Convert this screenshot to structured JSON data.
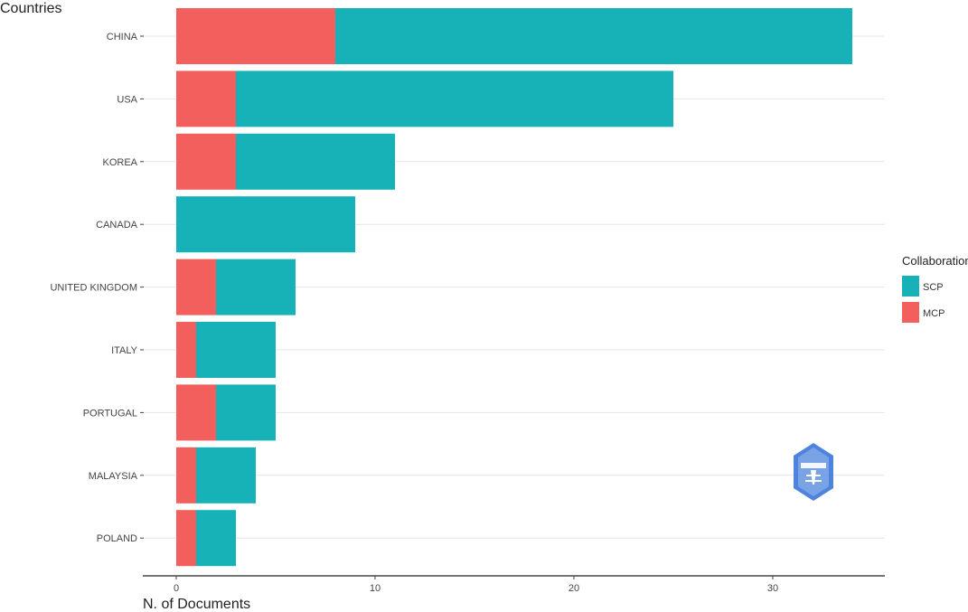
{
  "chart_data": {
    "type": "bar",
    "orientation": "horizontal",
    "stacked": true,
    "categories": [
      "CHINA",
      "USA",
      "KOREA",
      "CANADA",
      "UNITED KINGDOM",
      "ITALY",
      "PORTUGAL",
      "MALAYSIA",
      "POLAND"
    ],
    "series": [
      {
        "name": "MCP",
        "color": "#F25F5C",
        "values": [
          8,
          3,
          3,
          0,
          2,
          1,
          2,
          1,
          1
        ]
      },
      {
        "name": "SCP",
        "color": "#17B2B8",
        "values": [
          26,
          22,
          8,
          9,
          4,
          4,
          3,
          3,
          2
        ]
      }
    ],
    "xlabel": "N. of Documents",
    "ylabel": "Countries",
    "xlim": [
      0,
      35
    ],
    "xticks": [
      0,
      10,
      20,
      30
    ],
    "grid": true,
    "legend": {
      "title": "Collaboration",
      "position": "right",
      "order": [
        "SCP",
        "MCP"
      ]
    }
  },
  "watermark": {
    "icon": "shield-logo-icon",
    "color": "#2F6FD8"
  }
}
